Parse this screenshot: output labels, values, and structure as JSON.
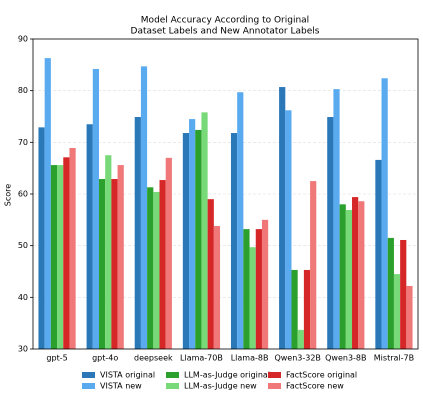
{
  "chart_data": {
    "type": "bar",
    "title": [
      "Model Accuracy According to Original",
      "Dataset Labels and New Annotator Labels"
    ],
    "ylabel": "Score",
    "categories": [
      "gpt-5",
      "gpt-4o",
      "deepseek",
      "Llama-70B",
      "Llama-8B",
      "Qwen3-32B",
      "Qwen3-8B",
      "Mistral-7B"
    ],
    "series": [
      {
        "name": "VISTA original",
        "color": "#2a78b8",
        "values": [
          72.9,
          73.5,
          74.9,
          71.8,
          71.8,
          80.7,
          74.9,
          66.6
        ]
      },
      {
        "name": "VISTA new",
        "color": "#5aaaf0",
        "values": [
          86.3,
          84.2,
          84.7,
          74.5,
          79.7,
          76.2,
          80.3,
          82.4
        ]
      },
      {
        "name": "LLM-as-Judge original",
        "color": "#2ca02c",
        "values": [
          65.6,
          62.9,
          61.3,
          72.4,
          53.2,
          45.3,
          58.0,
          51.5
        ]
      },
      {
        "name": "LLM-as-Judge new",
        "color": "#77d977",
        "values": [
          65.6,
          67.5,
          60.4,
          75.8,
          49.7,
          33.7,
          56.9,
          44.5
        ]
      },
      {
        "name": "FactScore original",
        "color": "#d62728",
        "values": [
          67.1,
          62.9,
          62.7,
          59.0,
          53.2,
          45.3,
          59.4,
          51.1
        ]
      },
      {
        "name": "FactScore new",
        "color": "#f07878",
        "values": [
          68.9,
          65.6,
          67.0,
          53.8,
          55.0,
          62.5,
          58.6,
          42.2
        ]
      }
    ],
    "ylim": [
      30,
      90
    ],
    "yticks": [
      30,
      40,
      50,
      60,
      70,
      80,
      90
    ],
    "grid": true
  }
}
